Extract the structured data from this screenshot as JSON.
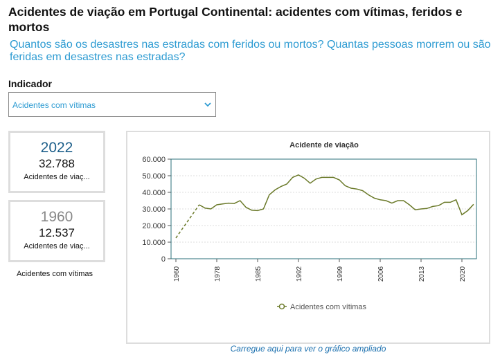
{
  "header": {
    "title": "Acidentes de viação em Portugal Continental: acidentes com vítimas, feridos e mortos",
    "subtitle": "Quantos são os desastres nas estradas com feridos ou mortos? Quantas pessoas morrem ou são feridas em desastres nas estradas?"
  },
  "indicator": {
    "label": "Indicador",
    "selected": "Acidentes com vítimas"
  },
  "cards": [
    {
      "year": "2022",
      "value": "32.788",
      "label": "Acidentes de viaç..."
    },
    {
      "year": "1960",
      "value": "12.537",
      "label": "Acidentes de viaç..."
    }
  ],
  "cards_caption": "Acidentes com vítimas",
  "chart_data": {
    "type": "line",
    "title": "Acidente de viação",
    "categories": [
      "1960",
      null,
      null,
      null,
      null,
      null,
      null,
      "1978",
      null,
      null,
      null,
      null,
      null,
      null,
      "1985",
      null,
      null,
      null,
      null,
      null,
      null,
      "1992",
      null,
      null,
      null,
      null,
      null,
      null,
      "1999",
      null,
      null,
      null,
      null,
      null,
      null,
      "2006",
      null,
      null,
      null,
      null,
      null,
      null,
      "2013",
      null,
      null,
      null,
      null,
      null,
      null,
      "2020",
      null,
      null
    ],
    "series": [
      {
        "name": "Acidentes com vítimas",
        "color": "#6b7a2a",
        "values": [
          12537,
          null,
          null,
          null,
          32500,
          30500,
          30000,
          32500,
          33000,
          33500,
          33300,
          35000,
          31000,
          29200,
          29000,
          30000,
          38500,
          41500,
          43500,
          45000,
          49000,
          50500,
          48500,
          45500,
          48000,
          49000,
          49000,
          49000,
          47500,
          44000,
          42500,
          42000,
          41000,
          38500,
          36500,
          35500,
          35000,
          33500,
          35000,
          35000,
          32500,
          29500,
          30000,
          30300,
          31500,
          32000,
          34000,
          34000,
          35500,
          26500,
          29000,
          32788
        ]
      }
    ],
    "ylim": [
      0,
      60000
    ],
    "yticks": [
      0,
      {
        "value": 10000,
        "label": "10.000"
      },
      {
        "value": 20000,
        "label": "20.000"
      },
      {
        "value": 30000,
        "label": "30.000"
      },
      {
        "value": 40000,
        "label": "40.000"
      },
      {
        "value": 50000,
        "label": "50.000"
      },
      {
        "value": 60000,
        "label": "60.000"
      }
    ],
    "grid": true,
    "legend": "bottom"
  },
  "footer_link": "Carregue aqui para ver o gráfico ampliado"
}
